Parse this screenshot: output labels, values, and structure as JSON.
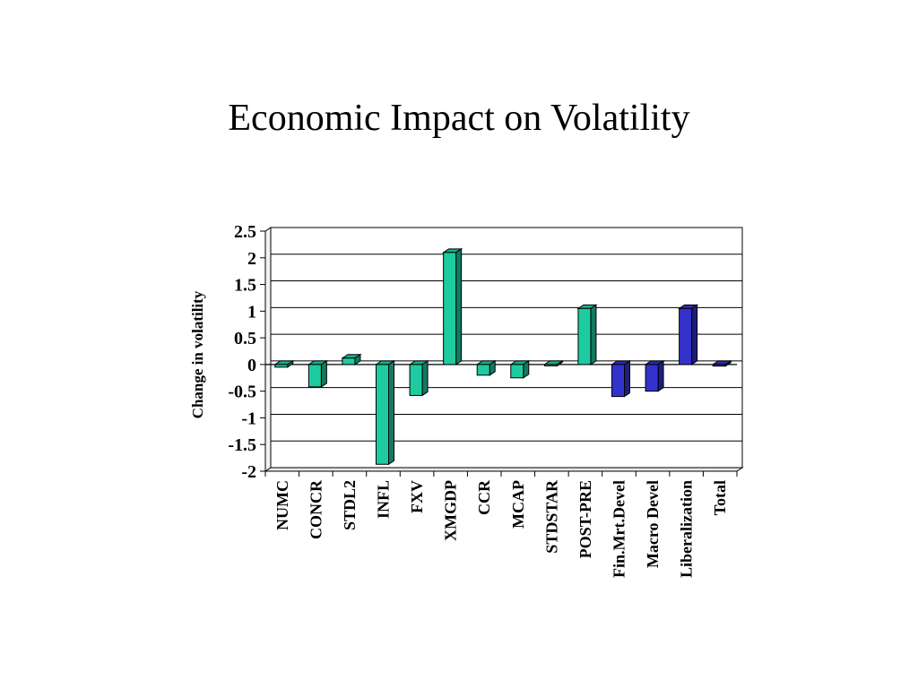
{
  "slide": {
    "title": "Economic Impact on Volatility"
  },
  "chart_data": {
    "type": "bar",
    "title": "",
    "xlabel": "",
    "ylabel": "Change in volatility",
    "ylim": [
      -2,
      2.5
    ],
    "yticks": [
      "2.5",
      "2",
      "1.5",
      "1",
      "0.5",
      "0",
      "-0.5",
      "-1",
      "-1.5",
      "-2"
    ],
    "grid": true,
    "legend": "none",
    "categories": [
      "NUMC",
      "CONCR",
      "STDL2",
      "INFL",
      "FXV",
      "XMGDP",
      "CCR",
      "MCAP",
      "STDSTAR",
      "POST-PRE",
      "Fin.Mrt.Devel",
      "Macro Devel",
      "Liberalization",
      "Total"
    ],
    "values": [
      -0.05,
      -0.42,
      0.12,
      -1.87,
      -0.58,
      2.1,
      -0.2,
      -0.25,
      0.0,
      1.05,
      -0.6,
      -0.5,
      1.05,
      -0.03
    ],
    "colors": [
      "#1ECBA0",
      "#1ECBA0",
      "#1ECBA0",
      "#1ECBA0",
      "#1ECBA0",
      "#1ECBA0",
      "#1ECBA0",
      "#1ECBA0",
      "#1ECBA0",
      "#1ECBA0",
      "#3333CC",
      "#3333CC",
      "#3333CC",
      "#3333CC"
    ]
  }
}
